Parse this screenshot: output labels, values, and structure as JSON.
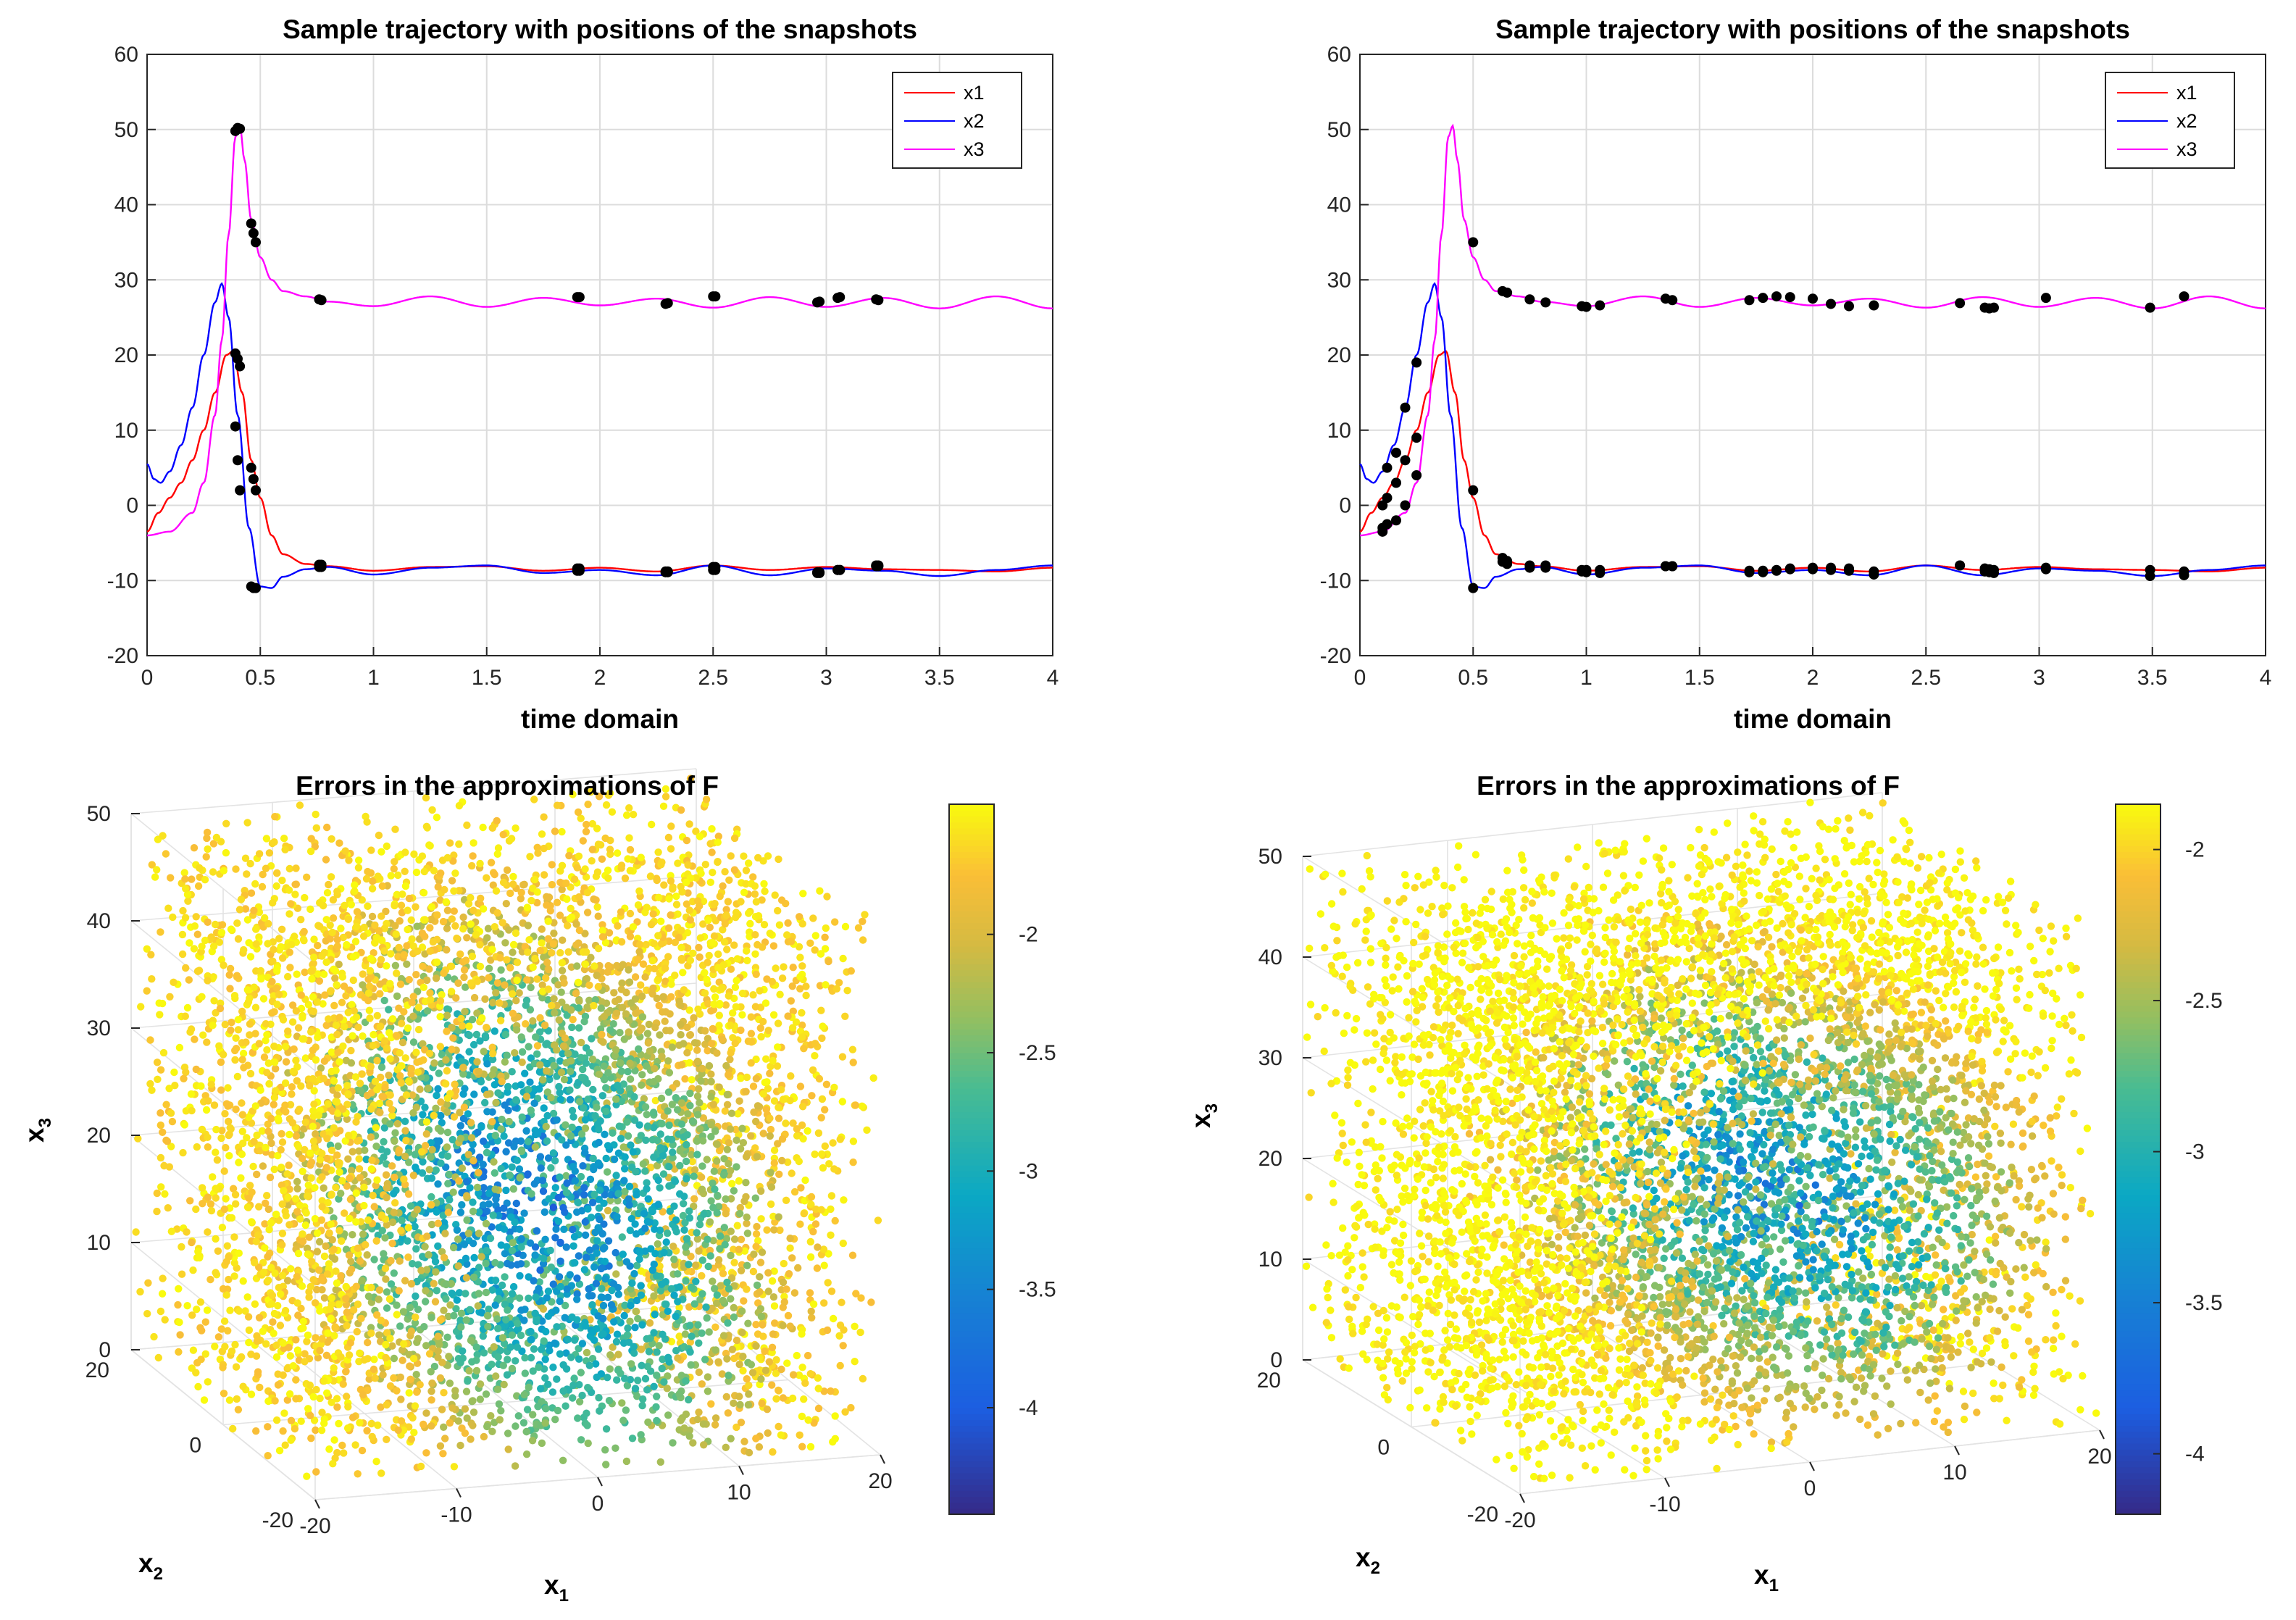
{
  "chart_data": [
    {
      "type": "line",
      "title": "Sample trajectory with positions of the snapshots",
      "xlabel": "time domain",
      "ylabel": "",
      "xlim": [
        0,
        4
      ],
      "ylim": [
        -20,
        60
      ],
      "xticks": [
        "0",
        "0.5",
        "1",
        "1.5",
        "2",
        "2.5",
        "3",
        "3.5",
        "4"
      ],
      "yticks": [
        "-20",
        "-10",
        "0",
        "10",
        "20",
        "30",
        "40",
        "50",
        "60"
      ],
      "grid": true,
      "legend": {
        "placement": "top-right",
        "entries": [
          "x1",
          "x2",
          "x3"
        ]
      },
      "colors": {
        "x1": "#ff0000",
        "x2": "#0000ff",
        "x3": "#ff00ff",
        "snapshot": "#000000"
      },
      "series": [
        {
          "name": "x1",
          "x": [
            0,
            0.05,
            0.1,
            0.15,
            0.2,
            0.25,
            0.3,
            0.35,
            0.38,
            0.42,
            0.46,
            0.5,
            0.55,
            0.6,
            0.7,
            0.8,
            1.0,
            1.25,
            1.5,
            1.75,
            2.0,
            2.25,
            2.5,
            2.75,
            3.0,
            3.25,
            3.5,
            3.75,
            4.0
          ],
          "values": [
            -3.5,
            -1,
            1,
            3,
            6,
            10,
            15,
            20,
            20.5,
            15,
            6,
            1,
            -4,
            -6.5,
            -7.8,
            -8.1,
            -8.7,
            -8.2,
            -8.1,
            -8.7,
            -8.3,
            -8.8,
            -8.0,
            -8.6,
            -8.2,
            -8.5,
            -8.6,
            -8.8,
            -8.3
          ]
        },
        {
          "name": "x2",
          "x": [
            0,
            0.03,
            0.06,
            0.1,
            0.15,
            0.2,
            0.25,
            0.3,
            0.33,
            0.36,
            0.4,
            0.45,
            0.5,
            0.55,
            0.6,
            0.7,
            0.8,
            1.0,
            1.25,
            1.5,
            1.75,
            2.0,
            2.25,
            2.5,
            2.75,
            3.0,
            3.25,
            3.5,
            3.75,
            4.0
          ],
          "values": [
            5.5,
            3.5,
            3,
            4.5,
            8,
            13,
            20,
            27,
            29.5,
            25,
            12,
            -3,
            -10.8,
            -11,
            -9.5,
            -8.5,
            -8.2,
            -9.2,
            -8.3,
            -8.0,
            -9.0,
            -8.6,
            -9.3,
            -8.0,
            -9.3,
            -8.4,
            -8.7,
            -9.4,
            -8.6,
            -8.0
          ]
        },
        {
          "name": "x3",
          "x": [
            0,
            0.1,
            0.2,
            0.25,
            0.3,
            0.33,
            0.36,
            0.39,
            0.41,
            0.43,
            0.46,
            0.5,
            0.55,
            0.6,
            0.7,
            0.8,
            1.0,
            1.25,
            1.5,
            1.75,
            2.0,
            2.25,
            2.5,
            2.75,
            3.0,
            3.25,
            3.5,
            3.75,
            4.0
          ],
          "values": [
            -4,
            -3.5,
            -1,
            3,
            12,
            22,
            36,
            49,
            50.5,
            46,
            38,
            33,
            30,
            28.5,
            27.8,
            27.1,
            26.5,
            27.8,
            26.4,
            27.6,
            26.6,
            27.5,
            26.3,
            27.7,
            26.4,
            27.6,
            26.2,
            27.8,
            26.2
          ]
        }
      ],
      "snapshots_t": [
        0.39,
        0.4,
        0.41,
        0.46,
        0.47,
        0.48,
        0.76,
        0.77,
        1.9,
        1.91,
        2.29,
        2.3,
        2.5,
        2.51,
        2.96,
        2.97,
        3.05,
        3.06,
        3.22,
        3.23
      ],
      "snapshot_markers": [
        {
          "t": 0.39,
          "values": [
            20.2,
            10.5,
            49.8
          ]
        },
        {
          "t": 0.4,
          "values": [
            19.5,
            6,
            50.2
          ]
        },
        {
          "t": 0.41,
          "values": [
            18.5,
            2,
            50.1
          ]
        },
        {
          "t": 0.46,
          "values": [
            5,
            -10.8,
            37.5
          ]
        },
        {
          "t": 0.47,
          "values": [
            3.5,
            -11,
            36.2
          ]
        },
        {
          "t": 0.48,
          "values": [
            2,
            -11,
            35
          ]
        },
        {
          "t": 0.76,
          "values": [
            -7.9,
            -8.2,
            27.4
          ]
        },
        {
          "t": 0.77,
          "values": [
            -7.9,
            -8.2,
            27.3
          ]
        },
        {
          "t": 1.9,
          "values": [
            -8.4,
            -8.7,
            27.7
          ]
        },
        {
          "t": 1.91,
          "values": [
            -8.4,
            -8.7,
            27.7
          ]
        },
        {
          "t": 2.29,
          "values": [
            -8.8,
            -8.9,
            26.8
          ]
        },
        {
          "t": 2.3,
          "values": [
            -8.8,
            -8.9,
            26.9
          ]
        },
        {
          "t": 2.5,
          "values": [
            -8.2,
            -8.6,
            27.8
          ]
        },
        {
          "t": 2.51,
          "values": [
            -8.2,
            -8.6,
            27.8
          ]
        },
        {
          "t": 2.96,
          "values": [
            -9,
            -8.9,
            27
          ]
        },
        {
          "t": 2.97,
          "values": [
            -9,
            -8.9,
            27.1
          ]
        },
        {
          "t": 3.05,
          "values": [
            -8.6,
            -8.6,
            27.6
          ]
        },
        {
          "t": 3.06,
          "values": [
            -8.6,
            -8.6,
            27.7
          ]
        },
        {
          "t": 3.22,
          "values": [
            -8,
            -8.1,
            27.4
          ]
        },
        {
          "t": 3.23,
          "values": [
            -8,
            -8.1,
            27.3
          ]
        }
      ]
    },
    {
      "type": "line",
      "title": "Sample trajectory with positions of the snapshots",
      "xlabel": "time domain",
      "ylabel": "",
      "xlim": [
        0,
        4
      ],
      "ylim": [
        -20,
        60
      ],
      "xticks": [
        "0",
        "0.5",
        "1",
        "1.5",
        "2",
        "2.5",
        "3",
        "3.5",
        "4"
      ],
      "yticks": [
        "-20",
        "-10",
        "0",
        "10",
        "20",
        "30",
        "40",
        "50",
        "60"
      ],
      "grid": true,
      "legend": {
        "placement": "top-right",
        "entries": [
          "x1",
          "x2",
          "x3"
        ]
      },
      "colors": {
        "x1": "#ff0000",
        "x2": "#0000ff",
        "x3": "#ff00ff",
        "snapshot": "#000000"
      },
      "series": [
        {
          "name": "x1",
          "x": [
            0,
            0.05,
            0.1,
            0.15,
            0.2,
            0.25,
            0.3,
            0.35,
            0.38,
            0.42,
            0.46,
            0.5,
            0.55,
            0.6,
            0.7,
            0.8,
            1.0,
            1.25,
            1.5,
            1.75,
            2.0,
            2.25,
            2.5,
            2.75,
            3.0,
            3.25,
            3.5,
            3.75,
            4.0
          ],
          "values": [
            -3.5,
            -1,
            1,
            3,
            6,
            10,
            15,
            20,
            20.5,
            15,
            6,
            1,
            -4,
            -6.5,
            -7.8,
            -8.1,
            -8.7,
            -8.2,
            -8.1,
            -8.7,
            -8.3,
            -8.8,
            -8.0,
            -8.6,
            -8.2,
            -8.5,
            -8.6,
            -8.8,
            -8.3
          ]
        },
        {
          "name": "x2",
          "x": [
            0,
            0.03,
            0.06,
            0.1,
            0.15,
            0.2,
            0.25,
            0.3,
            0.33,
            0.36,
            0.4,
            0.45,
            0.5,
            0.55,
            0.6,
            0.7,
            0.8,
            1.0,
            1.25,
            1.5,
            1.75,
            2.0,
            2.25,
            2.5,
            2.75,
            3.0,
            3.25,
            3.5,
            3.75,
            4.0
          ],
          "values": [
            5.5,
            3.5,
            3,
            4.5,
            8,
            13,
            20,
            27,
            29.5,
            25,
            12,
            -3,
            -10.8,
            -11,
            -9.5,
            -8.5,
            -8.2,
            -9.2,
            -8.3,
            -8.0,
            -9.0,
            -8.6,
            -9.3,
            -8.0,
            -9.3,
            -8.4,
            -8.7,
            -9.4,
            -8.6,
            -8.0
          ]
        },
        {
          "name": "x3",
          "x": [
            0,
            0.1,
            0.2,
            0.25,
            0.3,
            0.33,
            0.36,
            0.39,
            0.41,
            0.43,
            0.46,
            0.5,
            0.55,
            0.6,
            0.7,
            0.8,
            1.0,
            1.25,
            1.5,
            1.75,
            2.0,
            2.25,
            2.5,
            2.75,
            3.0,
            3.25,
            3.5,
            3.75,
            4.0
          ],
          "values": [
            -4,
            -3.5,
            -1,
            3,
            12,
            22,
            36,
            49,
            50.5,
            46,
            38,
            33,
            30,
            28.5,
            27.8,
            27.1,
            26.5,
            27.8,
            26.4,
            27.6,
            26.6,
            27.5,
            26.3,
            27.7,
            26.4,
            27.6,
            26.2,
            27.8,
            26.2
          ]
        }
      ],
      "snapshots_t": [
        0.1,
        0.12,
        0.16,
        0.2,
        0.25,
        0.5,
        0.63,
        0.65,
        0.75,
        0.82,
        0.98,
        1.0,
        1.06,
        1.35,
        1.38,
        1.72,
        1.78,
        1.84,
        1.9,
        2.0,
        2.08,
        2.16,
        2.27,
        2.65,
        2.76,
        2.78,
        2.8,
        3.03,
        3.49,
        3.64
      ],
      "snapshot_markers": [
        {
          "t": 0.1,
          "values": [
            0,
            -3,
            -3.5
          ]
        },
        {
          "t": 0.12,
          "values": [
            1,
            5,
            -2.5
          ]
        },
        {
          "t": 0.16,
          "values": [
            3,
            7,
            -2
          ]
        },
        {
          "t": 0.2,
          "values": [
            6,
            13,
            0
          ]
        },
        {
          "t": 0.25,
          "values": [
            9,
            19,
            4
          ]
        },
        {
          "t": 0.5,
          "values": [
            2,
            -11,
            35
          ]
        },
        {
          "t": 0.63,
          "values": [
            -7,
            -7.5,
            28.5
          ]
        },
        {
          "t": 0.65,
          "values": [
            -7.4,
            -7.8,
            28.3
          ]
        },
        {
          "t": 0.75,
          "values": [
            -8,
            -8.3,
            27.4
          ]
        },
        {
          "t": 0.82,
          "values": [
            -8,
            -8.3,
            27
          ]
        },
        {
          "t": 0.98,
          "values": [
            -8.6,
            -8.8,
            26.5
          ]
        },
        {
          "t": 1.0,
          "values": [
            -8.6,
            -8.9,
            26.4
          ]
        },
        {
          "t": 1.06,
          "values": [
            -8.6,
            -9,
            26.6
          ]
        },
        {
          "t": 1.35,
          "values": [
            -8.1,
            -8.1,
            27.5
          ]
        },
        {
          "t": 1.38,
          "values": [
            -8.1,
            -8.1,
            27.3
          ]
        },
        {
          "t": 1.72,
          "values": [
            -8.7,
            -8.9,
            27.3
          ]
        },
        {
          "t": 1.78,
          "values": [
            -8.7,
            -8.9,
            27.6
          ]
        },
        {
          "t": 1.84,
          "values": [
            -8.6,
            -8.7,
            27.8
          ]
        },
        {
          "t": 1.9,
          "values": [
            -8.4,
            -8.5,
            27.7
          ]
        },
        {
          "t": 2.0,
          "values": [
            -8.3,
            -8.5,
            27.5
          ]
        },
        {
          "t": 2.08,
          "values": [
            -8.3,
            -8.6,
            26.8
          ]
        },
        {
          "t": 2.16,
          "values": [
            -8.4,
            -8.7,
            26.5
          ]
        },
        {
          "t": 2.27,
          "values": [
            -8.8,
            -9.2,
            26.6
          ]
        },
        {
          "t": 2.65,
          "values": [
            -8,
            -8,
            26.9
          ]
        },
        {
          "t": 2.76,
          "values": [
            -8.4,
            -8.8,
            26.3
          ]
        },
        {
          "t": 2.78,
          "values": [
            -8.5,
            -8.9,
            26.2
          ]
        },
        {
          "t": 2.8,
          "values": [
            -8.6,
            -9,
            26.3
          ]
        },
        {
          "t": 3.03,
          "values": [
            -8.3,
            -8.5,
            27.6
          ]
        },
        {
          "t": 3.49,
          "values": [
            -8.6,
            -9.4,
            26.3
          ]
        },
        {
          "t": 3.64,
          "values": [
            -8.8,
            -9.3,
            27.8
          ]
        }
      ]
    },
    {
      "type": "scatter",
      "title": "Errors in the approximations of F",
      "xlabel": "x",
      "xlabel_sub": "1",
      "ylabel": "x",
      "ylabel_sub": "2",
      "zlabel": "x",
      "zlabel_sub": "3",
      "xlim": [
        -20,
        20
      ],
      "ylim": [
        -20,
        20
      ],
      "zlim": [
        0,
        50
      ],
      "xticks": [
        "-20",
        "-10",
        "0",
        "10",
        "20"
      ],
      "yticks": [
        "-20",
        "0",
        "20"
      ],
      "zticks": [
        "0",
        "10",
        "20",
        "30",
        "40",
        "50"
      ],
      "colorbar": {
        "range": [
          -4.45,
          -1.45
        ],
        "ticks": [
          "-2",
          "-2.5",
          "-3",
          "-3.5",
          "-4"
        ],
        "tick_values": [
          -2,
          -2.5,
          -3,
          -3.5,
          -4
        ],
        "colormap": "parula"
      },
      "point_count": 6000,
      "error_model": "error is lowest (about -4.1) near the central lower region and rises to about -1.6 toward the left and right faces"
    },
    {
      "type": "scatter",
      "title": "Errors in the approximations of F",
      "xlabel": "x",
      "xlabel_sub": "1",
      "ylabel": "x",
      "ylabel_sub": "2",
      "zlabel": "x",
      "zlabel_sub": "3",
      "xlim": [
        -20,
        20
      ],
      "ylim": [
        -20,
        20
      ],
      "zlim": [
        0,
        50
      ],
      "xticks": [
        "-20",
        "-10",
        "0",
        "10",
        "20"
      ],
      "yticks": [
        "-20",
        "0",
        "20"
      ],
      "zticks": [
        "0",
        "10",
        "20",
        "30",
        "40",
        "50"
      ],
      "colorbar": {
        "range": [
          -4.2,
          -1.85
        ],
        "ticks": [
          "-2",
          "-2.5",
          "-3",
          "-3.5",
          "-4"
        ],
        "tick_values": [
          -2,
          -2.5,
          -3,
          -3.5,
          -4
        ],
        "colormap": "parula"
      },
      "point_count": 6500,
      "error_model": "error is lowest (about -3.8) in the central region and rises to about -1.9 toward the top and side faces"
    }
  ]
}
